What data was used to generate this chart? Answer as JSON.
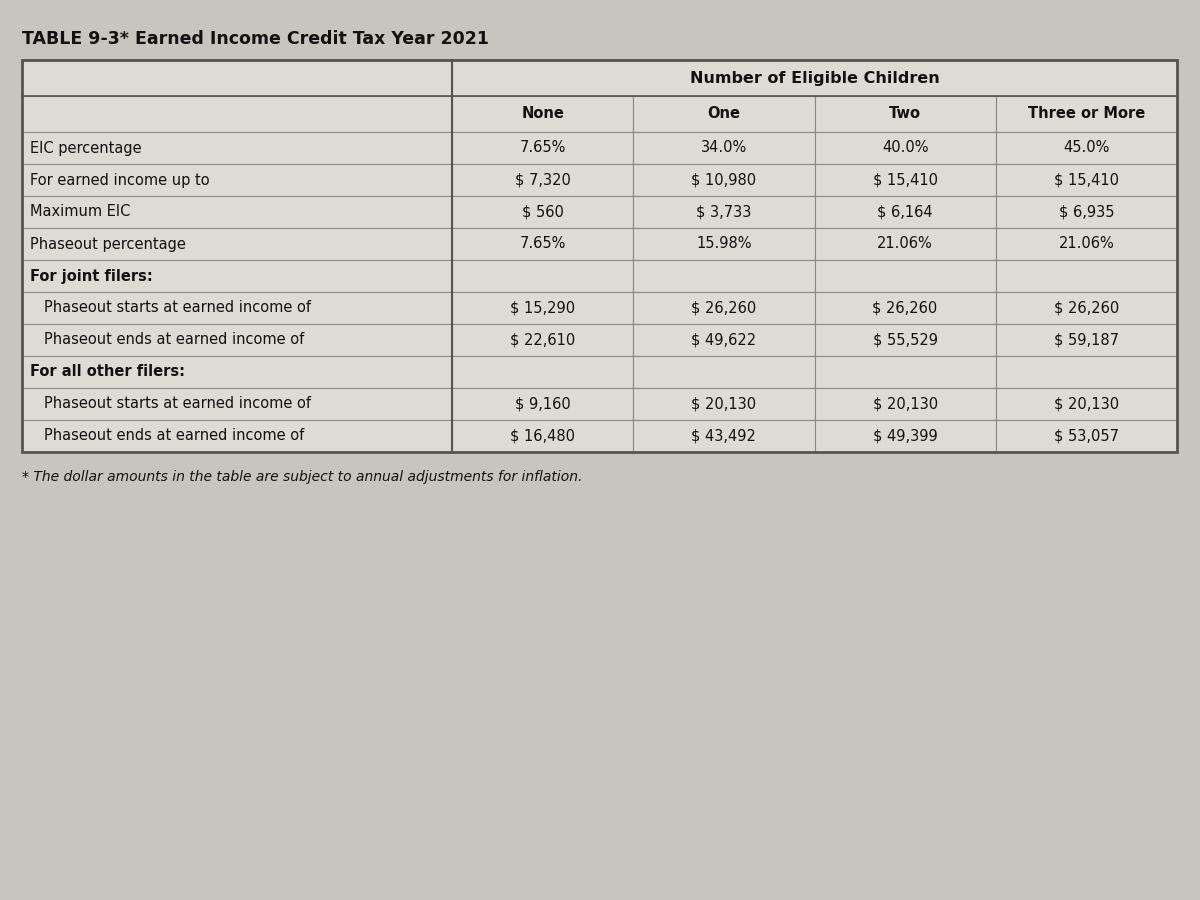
{
  "title": "TABLE 9-3* Earned Income Credit Tax Year 2021",
  "footnote": "* The dollar amounts in the table are subject to annual adjustments for inflation.",
  "header_group": "Number of Eligible Children",
  "col_headers": [
    "None",
    "One",
    "Two",
    "Three or More"
  ],
  "rows": [
    {
      "label": "EIC percentage",
      "indent": false,
      "section": false,
      "values": [
        "7.65%",
        "34.0%",
        "40.0%",
        "45.0%"
      ]
    },
    {
      "label": "For earned income up to",
      "indent": false,
      "section": false,
      "values": [
        "$ 7,320",
        "$ 10,980",
        "$ 15,410",
        "$ 15,410"
      ]
    },
    {
      "label": "Maximum EIC",
      "indent": false,
      "section": false,
      "values": [
        "$ 560",
        "$ 3,733",
        "$ 6,164",
        "$ 6,935"
      ]
    },
    {
      "label": "Phaseout percentage",
      "indent": false,
      "section": false,
      "values": [
        "7.65%",
        "15.98%",
        "21.06%",
        "21.06%"
      ]
    },
    {
      "label": "For joint filers:",
      "indent": false,
      "section": true,
      "values": [
        "",
        "",
        "",
        ""
      ]
    },
    {
      "label": "Phaseout starts at earned income of",
      "indent": true,
      "section": false,
      "values": [
        "$ 15,290",
        "$ 26,260",
        "$ 26,260",
        "$ 26,260"
      ]
    },
    {
      "label": "Phaseout ends at earned income of",
      "indent": true,
      "section": false,
      "values": [
        "$ 22,610",
        "$ 49,622",
        "$ 55,529",
        "$ 59,187"
      ]
    },
    {
      "label": "For all other filers:",
      "indent": false,
      "section": true,
      "values": [
        "",
        "",
        "",
        ""
      ]
    },
    {
      "label": "Phaseout starts at earned income of",
      "indent": true,
      "section": false,
      "values": [
        "$ 9,160",
        "$ 20,130",
        "$ 20,130",
        "$ 20,130"
      ]
    },
    {
      "label": "Phaseout ends at earned income of",
      "indent": true,
      "section": false,
      "values": [
        "$ 16,480",
        "$ 43,492",
        "$ 49,399",
        "$ 53,057"
      ]
    }
  ],
  "bg_upper": "#c8c5c0",
  "bg_lower": "#b8b5b0",
  "table_bg": "#dedad4",
  "cell_bg_light": "#dedad4",
  "border_color": "#555550",
  "border_inner": "#888884",
  "text_color": "#111111",
  "title_color": "#111111",
  "font_size": 10.5,
  "title_font_size": 12.5,
  "fig_width": 12.0,
  "fig_height": 9.0,
  "dpi": 100
}
